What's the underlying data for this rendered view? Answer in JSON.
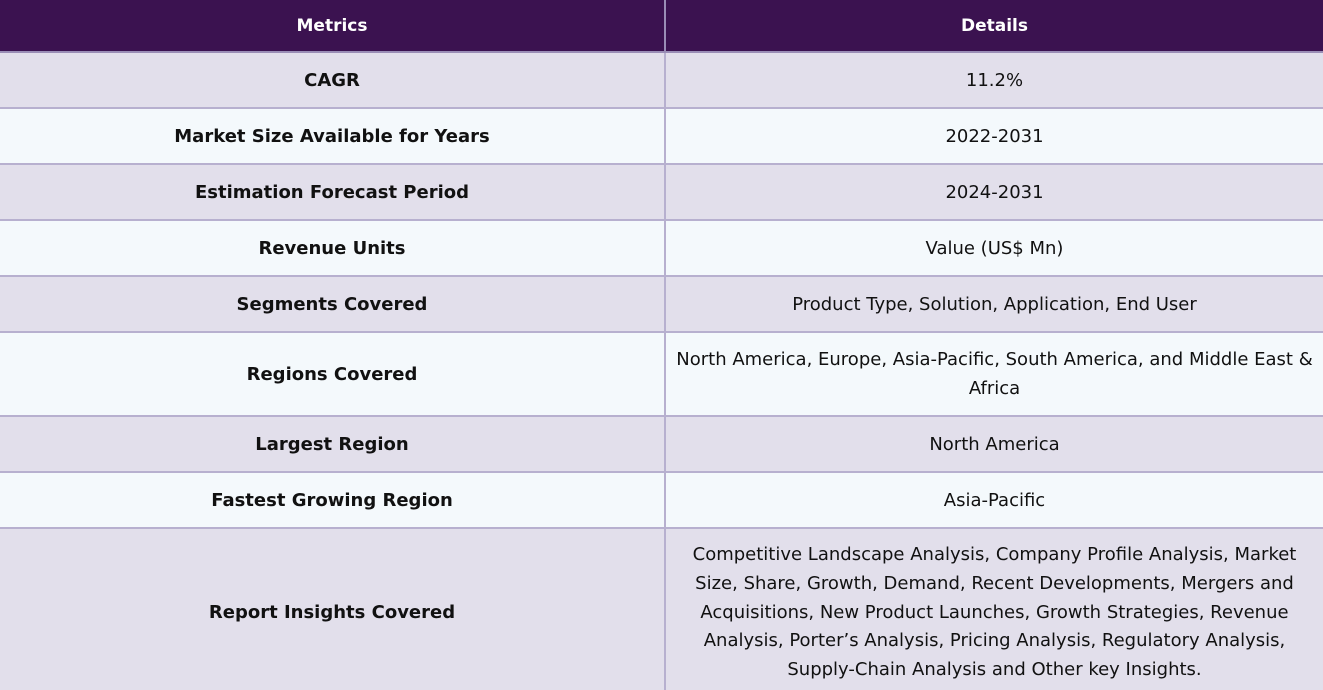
{
  "table": {
    "headers": {
      "metrics": "Metrics",
      "details": "Details"
    },
    "rows": [
      {
        "metric": "CAGR",
        "detail": "11.2%"
      },
      {
        "metric": "Market Size Available for Years",
        "detail": "2022-2031"
      },
      {
        "metric": "Estimation Forecast Period",
        "detail": "2024-2031"
      },
      {
        "metric": "Revenue Units",
        "detail": "Value (US$ Mn)"
      },
      {
        "metric": "Segments Covered",
        "detail": "Product Type, Solution, Application, End User"
      },
      {
        "metric": "Regions Covered",
        "detail": "North America, Europe, Asia-Pacific, South America, and Middle East & Africa"
      },
      {
        "metric": "Largest Region",
        "detail": "North America"
      },
      {
        "metric": "Fastest Growing Region",
        "detail": "Asia-Pacific"
      },
      {
        "metric": "Report Insights Covered",
        "detail": "Competitive Landscape Analysis, Company Profile Analysis, Market Size, Share, Growth, Demand, Recent Developments, Mergers and Acquisitions, New Product Launches, Growth Strategies, Revenue Analysis, Porter’s Analysis, Pricing Analysis, Regulatory Analysis, Supply-Chain Analysis and Other key Insights."
      }
    ]
  },
  "colors": {
    "header_bg": "#3b1250",
    "row_odd_bg": "#e2dfeb",
    "row_even_bg": "#f4f9fc",
    "border": "#b7b0cf"
  }
}
